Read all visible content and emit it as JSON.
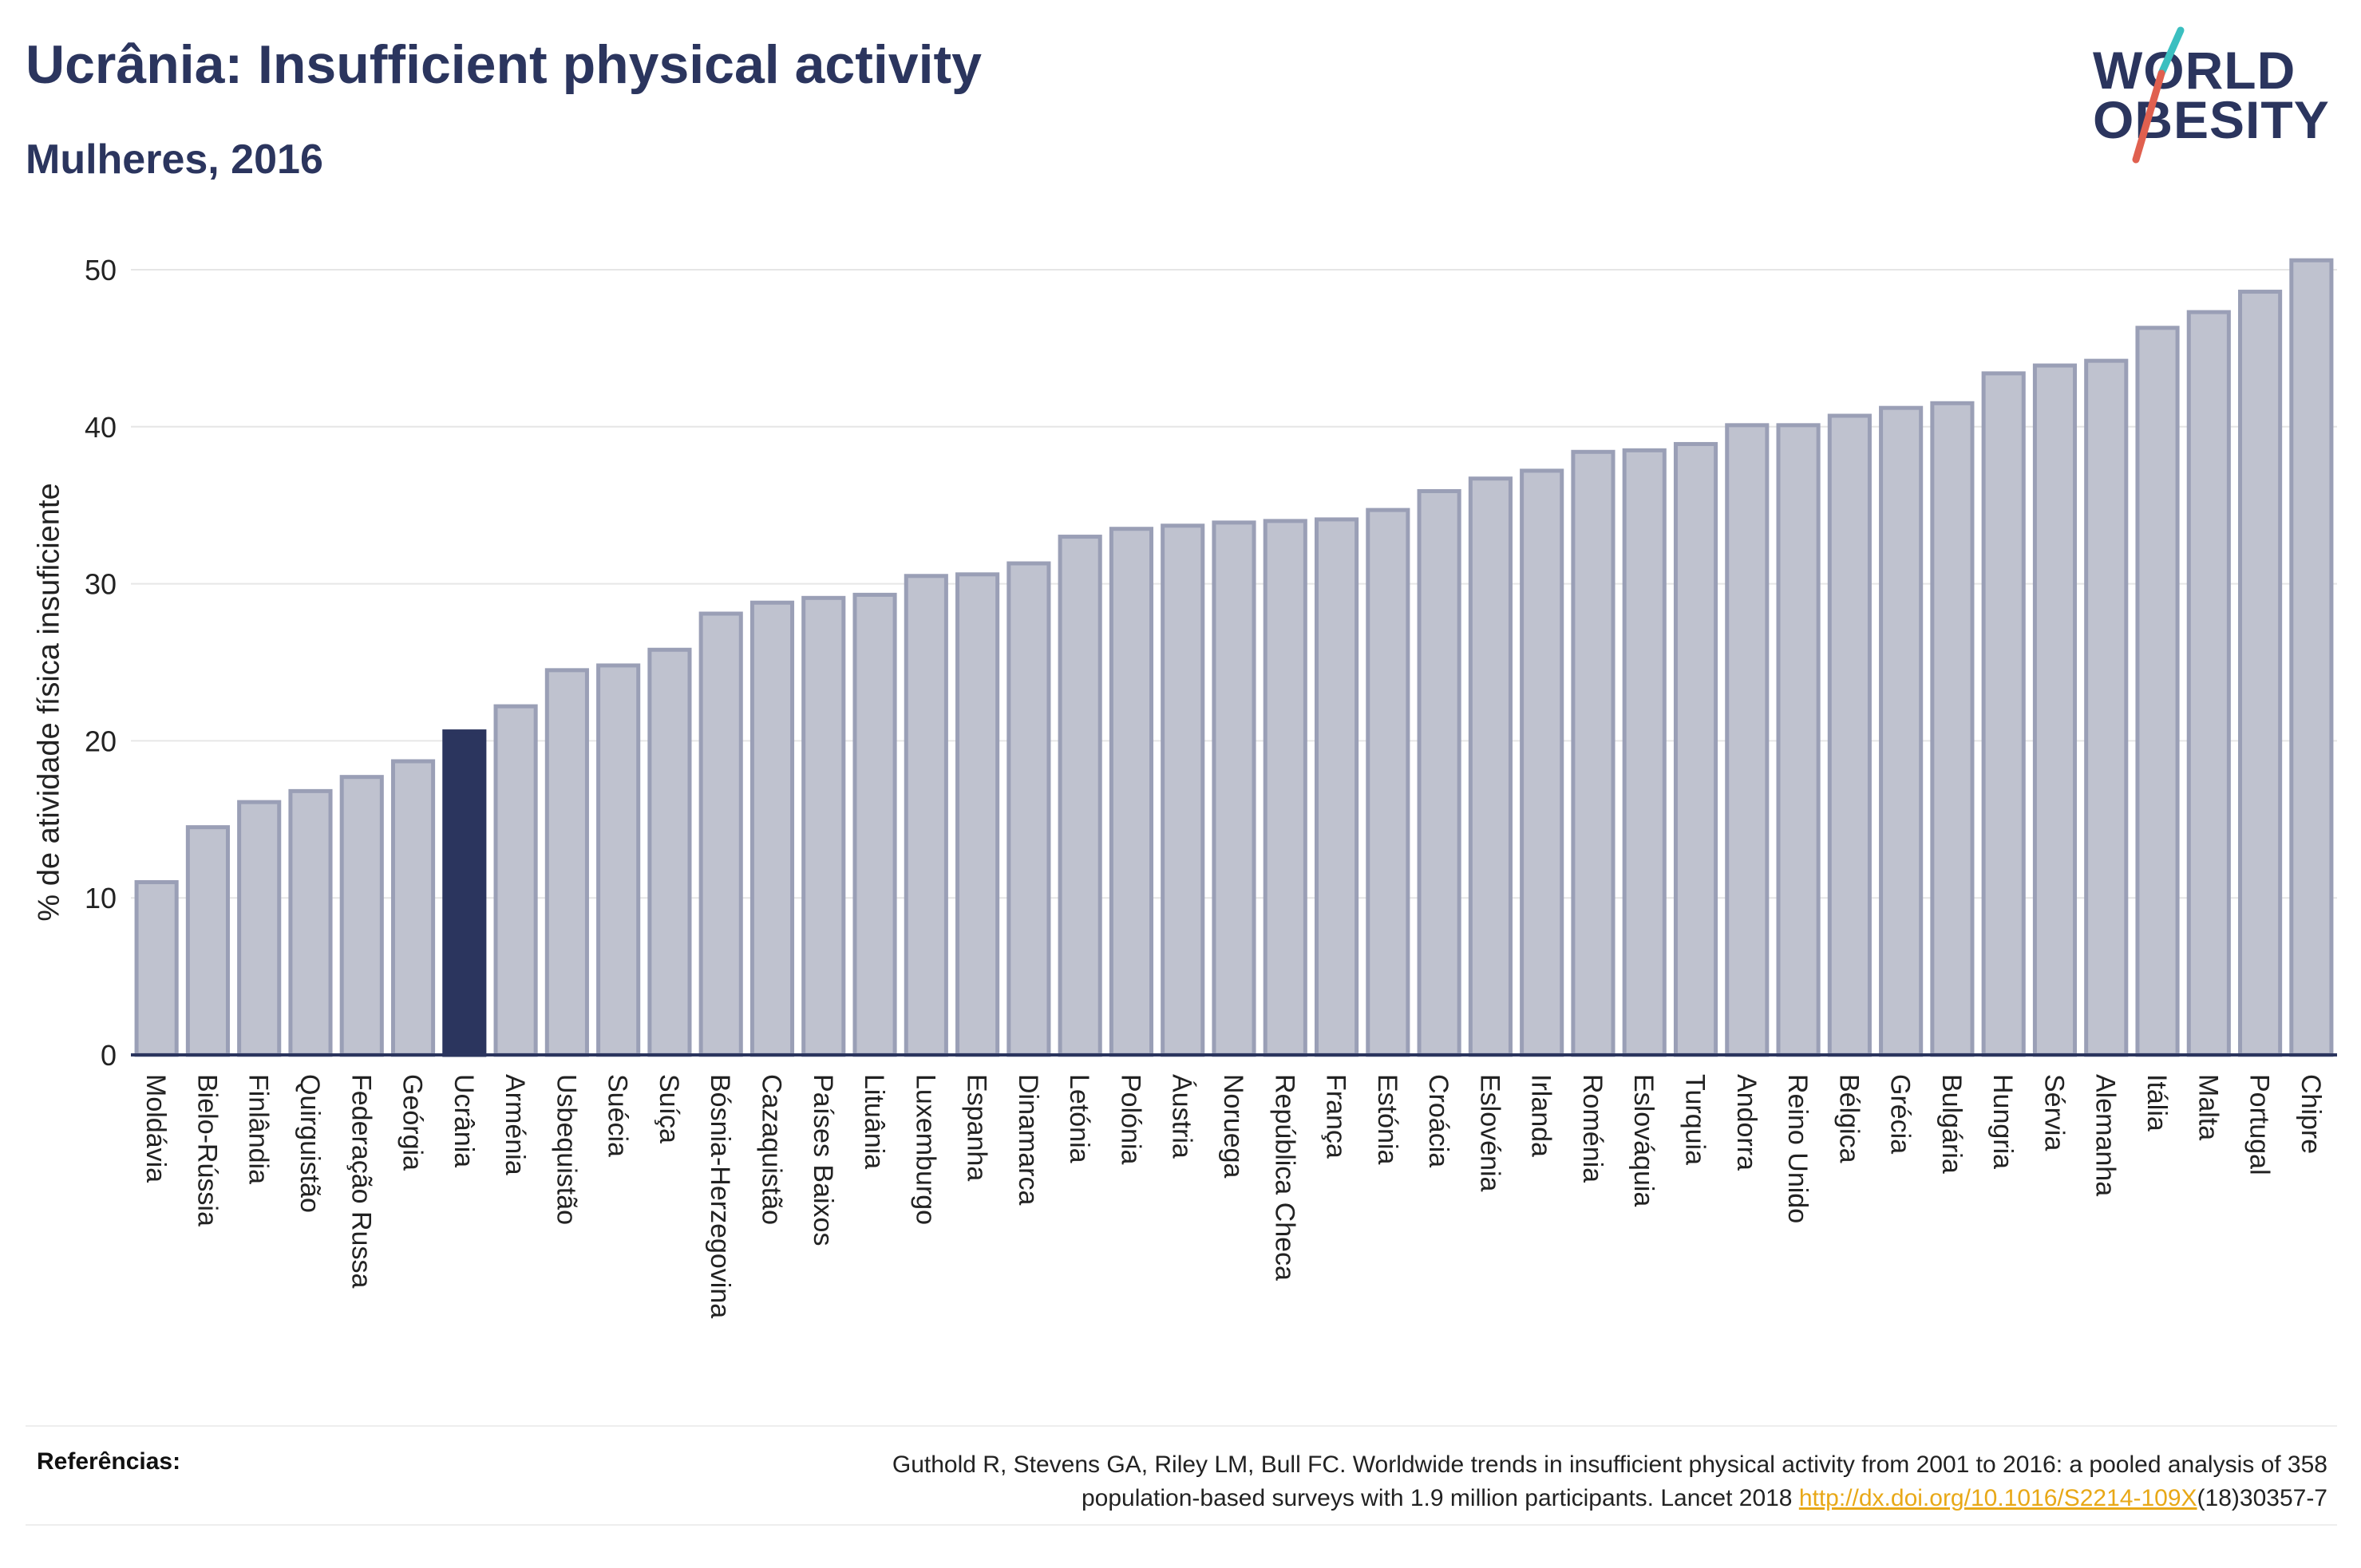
{
  "header": {
    "title": "Ucrânia: Insufficient physical activity",
    "subtitle": "Mulheres, 2016"
  },
  "logo": {
    "line1": "WORLD",
    "line2": "OBESITY",
    "colors": {
      "text": "#2b355e",
      "slash_top": "#3bbfc0",
      "slash_bottom": "#e0604f"
    }
  },
  "references": {
    "label": "Referências:",
    "text_line1": "Guthold R, Stevens GA, Riley LM, Bull FC. Worldwide trends in insufficient physical activity from 2001 to 2016: a pooled analysis of 358",
    "text_line2_before": "population-based surveys with 1.9 million participants. Lancet 2018 ",
    "link": "http://dx.doi.org/10.1016/S2214-109X",
    "text_line2_after": "(18)30357-7"
  },
  "colors": {
    "bar": "#bfc2cf",
    "bar_border": "#9a9fb6",
    "highlight": "#2b355e",
    "grid": "#e6e6e6",
    "axis": "#2b355e"
  },
  "chart_data": {
    "type": "bar",
    "title": "Ucrânia: Insufficient physical activity",
    "subtitle": "Mulheres, 2016",
    "xlabel": "",
    "ylabel": "% de atividade física insuficiente",
    "ylim": [
      0,
      52
    ],
    "yticks": [
      0,
      10,
      20,
      30,
      40,
      50
    ],
    "grid": true,
    "highlight": "Ucrânia",
    "categories": [
      "Moldávia",
      "Bielo-Rússia",
      "Finlândia",
      "Quirguistão",
      "Federação Russa",
      "Geórgia",
      "Ucrânia",
      "Arménia",
      "Usbequistão",
      "Suécia",
      "Suíça",
      "Bósnia-Herzegovina",
      "Cazaquistão",
      "Países Baixos",
      "Lituânia",
      "Luxemburgo",
      "Espanha",
      "Dinamarca",
      "Letónia",
      "Polónia",
      "Áustria",
      "Noruega",
      "República Checa",
      "França",
      "Estónia",
      "Croácia",
      "Eslovénia",
      "Irlanda",
      "Roménia",
      "Eslováquia",
      "Turquia",
      "Andorra",
      "Reino Unido",
      "Bélgica",
      "Grécia",
      "Bulgária",
      "Hungria",
      "Sérvia",
      "Alemanha",
      "Itália",
      "Malta",
      "Portugal",
      "Chipre"
    ],
    "values": [
      11.0,
      14.5,
      16.1,
      16.8,
      17.7,
      18.7,
      20.6,
      22.2,
      24.5,
      24.8,
      25.8,
      28.1,
      28.8,
      29.1,
      29.3,
      30.5,
      30.6,
      31.3,
      33.0,
      33.5,
      33.7,
      33.9,
      34.0,
      34.1,
      34.7,
      35.9,
      36.7,
      37.2,
      38.4,
      38.5,
      38.9,
      40.1,
      40.1,
      40.7,
      41.2,
      41.5,
      43.4,
      43.9,
      44.2,
      46.3,
      47.3,
      48.6,
      50.6
    ]
  }
}
